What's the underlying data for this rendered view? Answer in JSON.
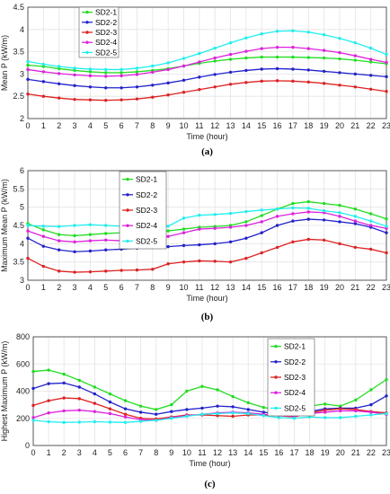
{
  "colors": {
    "SD2-1": "#22dd22",
    "SD2-2": "#2222cc",
    "SD2-3": "#dd2222",
    "SD2-4": "#dd22dd",
    "SD2-5": "#22eeee"
  },
  "chart_data": [
    {
      "type": "line",
      "caption": "(a)",
      "xlabel": "Time (hour)",
      "ylabel": "Mean P (kW/m)",
      "ylim": [
        2,
        4.5
      ],
      "yticks": [
        2,
        2.5,
        3,
        3.5,
        4,
        4.5
      ],
      "ytick_labels": [
        "2",
        "2.5",
        "3",
        "3.5",
        "4",
        "4.5"
      ],
      "x": [
        0,
        1,
        2,
        3,
        4,
        5,
        6,
        7,
        8,
        9,
        10,
        11,
        12,
        13,
        14,
        15,
        16,
        17,
        18,
        19,
        20,
        21,
        22,
        23
      ],
      "grid": true,
      "legend_position": "top-left",
      "series": [
        {
          "name": "SD2-1",
          "values": [
            3.2,
            3.17,
            3.12,
            3.08,
            3.05,
            3.03,
            3.03,
            3.05,
            3.08,
            3.12,
            3.18,
            3.24,
            3.29,
            3.33,
            3.36,
            3.38,
            3.38,
            3.38,
            3.37,
            3.36,
            3.34,
            3.31,
            3.27,
            3.23
          ]
        },
        {
          "name": "SD2-2",
          "values": [
            2.88,
            2.83,
            2.78,
            2.74,
            2.71,
            2.69,
            2.69,
            2.71,
            2.75,
            2.8,
            2.86,
            2.93,
            2.99,
            3.04,
            3.08,
            3.11,
            3.12,
            3.11,
            3.09,
            3.06,
            3.03,
            3.0,
            2.97,
            2.94
          ]
        },
        {
          "name": "SD2-3",
          "values": [
            2.55,
            2.5,
            2.46,
            2.43,
            2.42,
            2.41,
            2.42,
            2.44,
            2.48,
            2.53,
            2.59,
            2.65,
            2.71,
            2.77,
            2.81,
            2.84,
            2.85,
            2.84,
            2.82,
            2.79,
            2.75,
            2.71,
            2.66,
            2.61
          ]
        },
        {
          "name": "SD2-4",
          "values": [
            3.1,
            3.05,
            3.01,
            2.98,
            2.96,
            2.95,
            2.96,
            2.99,
            3.04,
            3.1,
            3.18,
            3.27,
            3.36,
            3.44,
            3.51,
            3.57,
            3.6,
            3.6,
            3.57,
            3.53,
            3.48,
            3.41,
            3.33,
            3.26
          ]
        },
        {
          "name": "SD2-5",
          "values": [
            3.28,
            3.22,
            3.17,
            3.13,
            3.11,
            3.1,
            3.1,
            3.13,
            3.18,
            3.25,
            3.35,
            3.46,
            3.58,
            3.7,
            3.81,
            3.9,
            3.96,
            3.97,
            3.94,
            3.88,
            3.8,
            3.7,
            3.58,
            3.44
          ]
        }
      ]
    },
    {
      "type": "line",
      "caption": "(b)",
      "xlabel": "Time (hour)",
      "ylabel": "Maximum Mean P (kW/m)",
      "ylim": [
        3,
        6
      ],
      "yticks": [
        3,
        3.5,
        4,
        4.5,
        5,
        5.5,
        6
      ],
      "ytick_labels": [
        "3",
        "3.5",
        "4",
        "4.5",
        "5",
        "5.5",
        "6"
      ],
      "x": [
        0,
        1,
        2,
        3,
        4,
        5,
        6,
        7,
        8,
        9,
        10,
        11,
        12,
        13,
        14,
        15,
        16,
        17,
        18,
        19,
        20,
        21,
        22,
        23
      ],
      "grid": true,
      "legend_position": "top-left",
      "series": [
        {
          "name": "SD2-1",
          "values": [
            4.55,
            4.38,
            4.25,
            4.22,
            4.25,
            4.28,
            4.3,
            4.32,
            4.33,
            4.35,
            4.4,
            4.45,
            4.47,
            4.5,
            4.6,
            4.77,
            4.95,
            5.1,
            5.15,
            5.1,
            5.05,
            4.95,
            4.82,
            4.68
          ]
        },
        {
          "name": "SD2-2",
          "values": [
            4.15,
            3.93,
            3.83,
            3.78,
            3.8,
            3.83,
            3.85,
            3.88,
            3.9,
            3.92,
            3.95,
            3.97,
            4.0,
            4.05,
            4.15,
            4.3,
            4.5,
            4.62,
            4.67,
            4.65,
            4.6,
            4.55,
            4.45,
            4.3
          ]
        },
        {
          "name": "SD2-3",
          "values": [
            3.6,
            3.38,
            3.25,
            3.22,
            3.23,
            3.25,
            3.27,
            3.28,
            3.3,
            3.45,
            3.5,
            3.53,
            3.52,
            3.5,
            3.6,
            3.75,
            3.9,
            4.05,
            4.12,
            4.1,
            4.0,
            3.9,
            3.85,
            3.75
          ]
        },
        {
          "name": "SD2-4",
          "values": [
            4.35,
            4.2,
            4.08,
            4.05,
            4.08,
            4.1,
            4.08,
            4.05,
            4.07,
            4.2,
            4.3,
            4.4,
            4.42,
            4.45,
            4.5,
            4.6,
            4.75,
            4.82,
            4.87,
            4.85,
            4.75,
            4.62,
            4.5,
            4.42
          ]
        },
        {
          "name": "SD2-5",
          "values": [
            4.5,
            4.48,
            4.47,
            4.5,
            4.52,
            4.5,
            4.48,
            4.45,
            4.45,
            4.48,
            4.7,
            4.78,
            4.8,
            4.83,
            4.88,
            4.92,
            4.95,
            4.98,
            4.97,
            4.9,
            4.85,
            4.75,
            4.62,
            4.48
          ]
        }
      ]
    },
    {
      "type": "line",
      "caption": "(c)",
      "xlabel": "Time (hour)",
      "ylabel": "Highest Maximum P (kW/m)",
      "ylim": [
        0,
        800
      ],
      "yticks": [
        0,
        200,
        400,
        600,
        800
      ],
      "ytick_labels": [
        "0",
        "200",
        "400",
        "600",
        "800"
      ],
      "x": [
        0,
        1,
        2,
        3,
        4,
        5,
        6,
        7,
        8,
        9,
        10,
        11,
        12,
        13,
        14,
        15,
        16,
        17,
        18,
        19,
        20,
        21,
        22,
        23
      ],
      "grid": true,
      "legend_position": "top-right",
      "series": [
        {
          "name": "SD2-1",
          "values": [
            545,
            555,
            525,
            480,
            430,
            380,
            330,
            290,
            265,
            300,
            400,
            435,
            410,
            360,
            315,
            280,
            260,
            255,
            290,
            305,
            290,
            335,
            410,
            485
          ]
        },
        {
          "name": "SD2-2",
          "values": [
            420,
            455,
            460,
            430,
            380,
            320,
            270,
            245,
            230,
            250,
            265,
            275,
            290,
            285,
            265,
            245,
            230,
            225,
            250,
            270,
            275,
            275,
            300,
            365
          ]
        },
        {
          "name": "SD2-3",
          "values": [
            295,
            330,
            350,
            345,
            310,
            270,
            230,
            200,
            195,
            210,
            225,
            225,
            220,
            215,
            225,
            225,
            220,
            210,
            240,
            260,
            270,
            265,
            250,
            240
          ]
        },
        {
          "name": "SD2-4",
          "values": [
            205,
            240,
            255,
            260,
            250,
            235,
            210,
            190,
            185,
            205,
            220,
            230,
            240,
            245,
            240,
            230,
            220,
            215,
            235,
            245,
            255,
            255,
            245,
            230
          ]
        },
        {
          "name": "SD2-5",
          "values": [
            185,
            175,
            170,
            172,
            175,
            172,
            170,
            178,
            185,
            200,
            215,
            230,
            235,
            240,
            235,
            220,
            205,
            200,
            210,
            205,
            205,
            215,
            225,
            235
          ]
        }
      ]
    }
  ]
}
